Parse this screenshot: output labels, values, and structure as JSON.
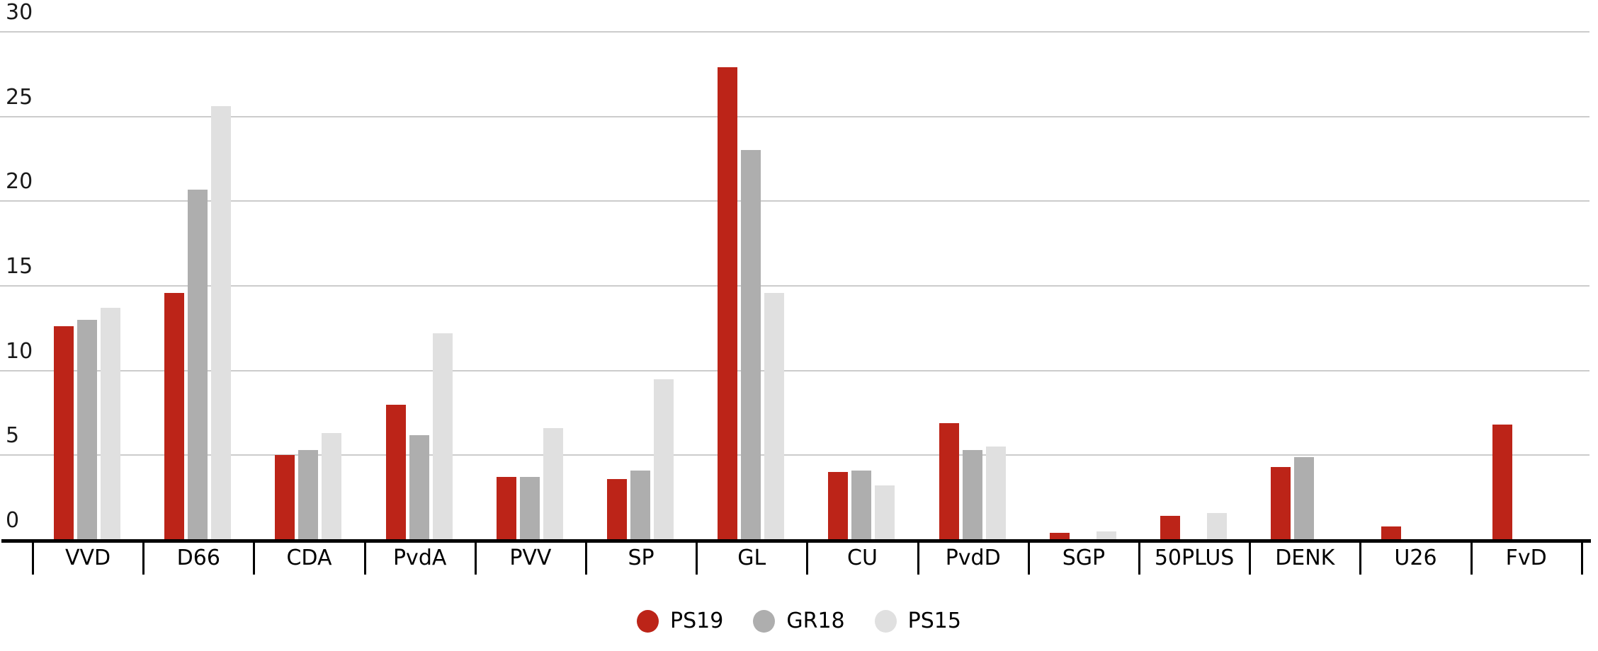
{
  "chart_data": {
    "type": "bar",
    "title": "",
    "xlabel": "",
    "ylabel": "",
    "categories": [
      "VVD",
      "D66",
      "CDA",
      "PvdA",
      "PVV",
      "SP",
      "GL",
      "CU",
      "PvdD",
      "SGP",
      "50PLUS",
      "DENK",
      "U26",
      "FvD"
    ],
    "series": [
      {
        "name": "PS19",
        "color": "#bc2418",
        "values": [
          12.6,
          14.6,
          5.0,
          8.0,
          3.7,
          3.6,
          27.9,
          4.0,
          6.9,
          0.4,
          1.4,
          4.3,
          0.8,
          6.8
        ]
      },
      {
        "name": "GR18",
        "color": "#aeaeae",
        "values": [
          13.0,
          20.7,
          5.3,
          6.2,
          3.7,
          4.1,
          23.0,
          4.1,
          5.3,
          0.0,
          0.0,
          4.9,
          0.0,
          0.0
        ]
      },
      {
        "name": "PS15",
        "color": "#e0e0e0",
        "values": [
          13.7,
          25.6,
          6.3,
          12.2,
          6.6,
          9.5,
          14.6,
          3.2,
          5.5,
          0.5,
          1.6,
          0.0,
          0.0,
          0.0
        ]
      }
    ],
    "yticks": [
      0,
      5,
      10,
      15,
      20,
      25,
      30
    ],
    "ylim": [
      0,
      30
    ],
    "grid": "horizontal",
    "legend_position": "bottom",
    "legend_items": [
      "PS19",
      "GR18",
      "PS15"
    ]
  },
  "colors": {
    "gridline": "#cccccc",
    "axis": "#000000",
    "text": "#1a1a1a",
    "background": "#ffffff"
  }
}
